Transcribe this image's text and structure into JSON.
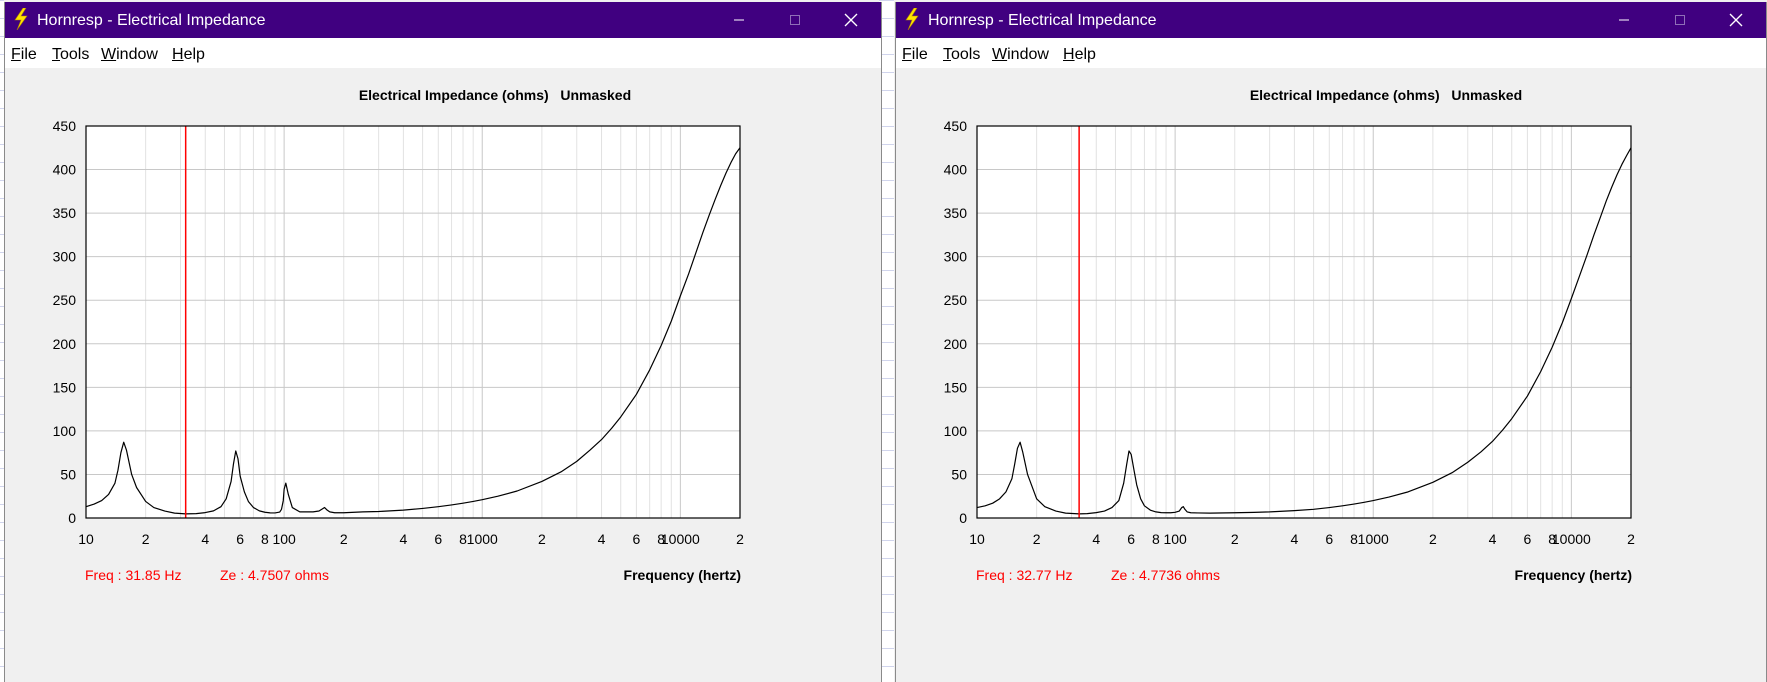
{
  "windows": [
    {
      "title": "Hornresp - Electrical Impedance",
      "menu": [
        {
          "accel": "F",
          "rest": "ile"
        },
        {
          "accel": "T",
          "rest": "ools"
        },
        {
          "accel": "W",
          "rest": "indow"
        },
        {
          "accel": "H",
          "rest": "elp"
        }
      ],
      "status": {
        "freq": "Freq : 31.85 Hz",
        "ze": "Ze : 4.7507 ohms"
      },
      "chart_data": {
        "type": "line",
        "title": "Electrical Impedance (ohms)   Unmasked",
        "xlabel": "Frequency (hertz)",
        "ylabel": "",
        "x_scale": "log",
        "xlim": [
          10,
          20000
        ],
        "ylim": [
          0,
          450
        ],
        "x_tick_labels": [
          {
            "value": 10,
            "label": "10"
          },
          {
            "value": 20,
            "label": "2"
          },
          {
            "value": 40,
            "label": "4"
          },
          {
            "value": 60,
            "label": "6"
          },
          {
            "value": 80,
            "label": "8"
          },
          {
            "value": 100,
            "label": "100"
          },
          {
            "value": 200,
            "label": "2"
          },
          {
            "value": 400,
            "label": "4"
          },
          {
            "value": 600,
            "label": "6"
          },
          {
            "value": 800,
            "label": "8"
          },
          {
            "value": 1000,
            "label": "1000"
          },
          {
            "value": 2000,
            "label": "2"
          },
          {
            "value": 4000,
            "label": "4"
          },
          {
            "value": 6000,
            "label": "6"
          },
          {
            "value": 8000,
            "label": "8"
          },
          {
            "value": 10000,
            "label": "10000"
          },
          {
            "value": 20000,
            "label": "2"
          }
        ],
        "y_ticks": [
          0,
          50,
          100,
          150,
          200,
          250,
          300,
          350,
          400,
          450
        ],
        "cursor_x": 31.85,
        "colors": {
          "curve": "#000000",
          "cursor": "#ff0000",
          "grid": "#c8c8c8",
          "status": "#ff0000"
        },
        "series": [
          {
            "x": [
              10,
              11,
              12,
              13,
              14,
              14.5,
              15,
              15.5,
              16,
              17,
              18,
              20,
              22,
              25,
              28,
              31.85,
              36,
              40,
              44,
              48,
              51,
              54,
              55.5,
              57,
              58.5,
              60,
              63,
              66,
              70,
              75,
              80,
              85,
              90,
              95,
              97,
              99,
              100,
              102,
              105,
              110,
              120,
              140,
              150,
              155,
              160,
              165,
              170,
              180,
              200,
              250,
              300,
              400,
              500,
              600,
              700,
              800,
              900,
              1000,
              1200,
              1500,
              2000,
              2500,
              3000,
              3500,
              4000,
              4500,
              5000,
              6000,
              7000,
              8000,
              9000,
              10000,
              11000,
              12000,
              13000,
              14000,
              15000,
              16000,
              17000,
              18000,
              19000,
              20000
            ],
            "y": [
              13,
              16,
              20,
              27,
              40,
              55,
              75,
              87,
              78,
              50,
              35,
              19,
              12,
              8,
              5.6,
              4.75,
              5,
              6.2,
              8.2,
              13,
              22,
              42,
              62,
              77,
              68,
              48,
              30,
              19,
              12,
              8.2,
              6.6,
              5.9,
              5.8,
              6.8,
              10,
              20,
              33,
              40,
              27,
              12,
              7,
              7,
              8,
              10,
              12,
              9,
              7,
              6,
              6,
              7,
              7.5,
              9,
              11,
              13,
              15,
              17,
              19,
              21,
              25,
              31,
              42,
              53,
              65,
              78,
              90,
              103,
              116,
              142,
              170,
              198,
              226,
              255,
              280,
              305,
              328,
              348,
              366,
              382,
              396,
              408,
              418,
              425
            ]
          }
        ]
      }
    },
    {
      "title": "Hornresp - Electrical Impedance",
      "menu": [
        {
          "accel": "F",
          "rest": "ile"
        },
        {
          "accel": "T",
          "rest": "ools"
        },
        {
          "accel": "W",
          "rest": "indow"
        },
        {
          "accel": "H",
          "rest": "elp"
        }
      ],
      "status": {
        "freq": "Freq : 32.77 Hz",
        "ze": "Ze : 4.7736 ohms"
      },
      "chart_data": {
        "type": "line",
        "title": "Electrical Impedance (ohms)   Unmasked",
        "xlabel": "Frequency (hertz)",
        "ylabel": "",
        "x_scale": "log",
        "xlim": [
          10,
          20000
        ],
        "ylim": [
          0,
          450
        ],
        "x_tick_labels": [
          {
            "value": 10,
            "label": "10"
          },
          {
            "value": 20,
            "label": "2"
          },
          {
            "value": 40,
            "label": "4"
          },
          {
            "value": 60,
            "label": "6"
          },
          {
            "value": 80,
            "label": "8"
          },
          {
            "value": 100,
            "label": "100"
          },
          {
            "value": 200,
            "label": "2"
          },
          {
            "value": 400,
            "label": "4"
          },
          {
            "value": 600,
            "label": "6"
          },
          {
            "value": 800,
            "label": "8"
          },
          {
            "value": 1000,
            "label": "1000"
          },
          {
            "value": 2000,
            "label": "2"
          },
          {
            "value": 4000,
            "label": "4"
          },
          {
            "value": 6000,
            "label": "6"
          },
          {
            "value": 8000,
            "label": "8"
          },
          {
            "value": 10000,
            "label": "10000"
          },
          {
            "value": 20000,
            "label": "2"
          }
        ],
        "y_ticks": [
          0,
          50,
          100,
          150,
          200,
          250,
          300,
          350,
          400,
          450
        ],
        "cursor_x": 32.77,
        "colors": {
          "curve": "#000000",
          "cursor": "#ff0000",
          "grid": "#c8c8c8",
          "status": "#ff0000"
        },
        "series": [
          {
            "x": [
              10,
              11,
              12,
              13,
              14,
              15,
              15.5,
              16,
              16.5,
              17,
              18,
              20,
              22,
              25,
              28,
              32.77,
              36,
              40,
              44,
              48,
              52,
              55,
              57,
              58.5,
              60,
              62,
              64,
              67,
              70,
              75,
              80,
              85,
              90,
              95,
              100,
              105,
              108,
              110,
              112,
              115,
              120,
              130,
              150,
              200,
              250,
              300,
              400,
              500,
              600,
              700,
              800,
              900,
              1000,
              1200,
              1500,
              2000,
              2500,
              3000,
              3500,
              4000,
              4500,
              5000,
              6000,
              7000,
              8000,
              9000,
              10000,
              11000,
              12000,
              13000,
              14000,
              15000,
              16000,
              17000,
              18000,
              19000,
              20000
            ],
            "y": [
              12,
              14,
              17,
              22,
              30,
              45,
              62,
              80,
              87,
              76,
              50,
              22,
              13,
              8,
              5.6,
              4.77,
              5,
              6.2,
              8,
              12,
              20,
              40,
              62,
              77,
              73,
              55,
              38,
              22,
              14,
              9,
              7,
              6.2,
              6,
              6,
              6.5,
              8,
              12,
              13,
              10,
              7,
              6,
              5.8,
              5.6,
              6,
              6.5,
              7,
              8.5,
              10,
              12,
              14,
              16,
              18,
              20,
              24,
              30,
              41,
              52,
              64,
              76,
              88,
              101,
              114,
              140,
              168,
              196,
              224,
              252,
              278,
              302,
              325,
              345,
              364,
              380,
              394,
              406,
              416,
              425
            ]
          }
        ]
      }
    }
  ]
}
